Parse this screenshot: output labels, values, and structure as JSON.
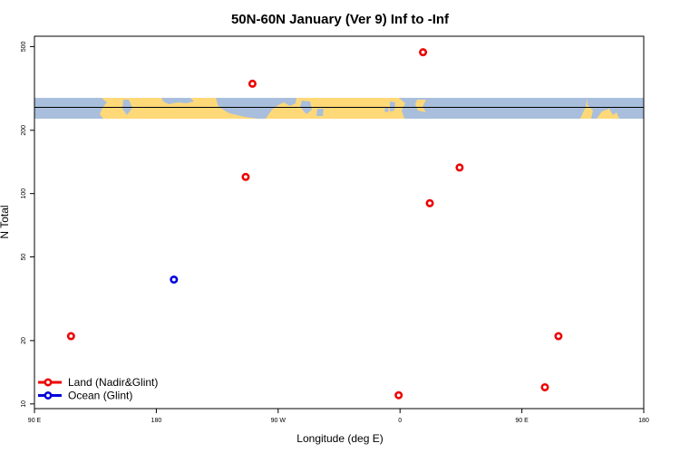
{
  "chart_data": {
    "type": "scatter",
    "title": "50N-60N January (Ver 9)   Inf to -Inf",
    "xlabel": "Longitude (deg E)",
    "ylabel": "N Total",
    "x_axis": {
      "domain": [
        90,
        540
      ],
      "ticks": [
        {
          "value": 90,
          "label": "90 E"
        },
        {
          "value": 180,
          "label": "180"
        },
        {
          "value": 270,
          "label": "90 W"
        },
        {
          "value": 360,
          "label": "0"
        },
        {
          "value": 450,
          "label": "90 E"
        },
        {
          "value": 540,
          "label": "180"
        }
      ]
    },
    "y_axis": {
      "scale": "log",
      "domain": [
        9.5,
        560
      ],
      "ticks": [
        10,
        20,
        50,
        100,
        200,
        500
      ]
    },
    "series": [
      {
        "name": "Land (Nadir&Glint)",
        "color": "#ee0000",
        "points": [
          {
            "x": 117,
            "y": 21
          },
          {
            "x": 246,
            "y": 120
          },
          {
            "x": 251,
            "y": 333
          },
          {
            "x": 359,
            "y": 11
          },
          {
            "x": 377,
            "y": 470
          },
          {
            "x": 382,
            "y": 90
          },
          {
            "x": 404,
            "y": 133
          },
          {
            "x": 467,
            "y": 12
          },
          {
            "x": 477,
            "y": 21
          }
        ]
      },
      {
        "name": "Ocean (Glint)",
        "color": "#0000dd",
        "points": [
          {
            "x": 193,
            "y": 39
          }
        ]
      }
    ],
    "map_strip": {
      "latitude_band": "50N-60N",
      "ocean_color": "#ffd878",
      "land_color": "#a8bedc",
      "line_color": "#000000"
    },
    "legend": {
      "position": "bottom-left",
      "entries": [
        "Land (Nadir&Glint)",
        "Ocean (Glint)"
      ]
    }
  }
}
